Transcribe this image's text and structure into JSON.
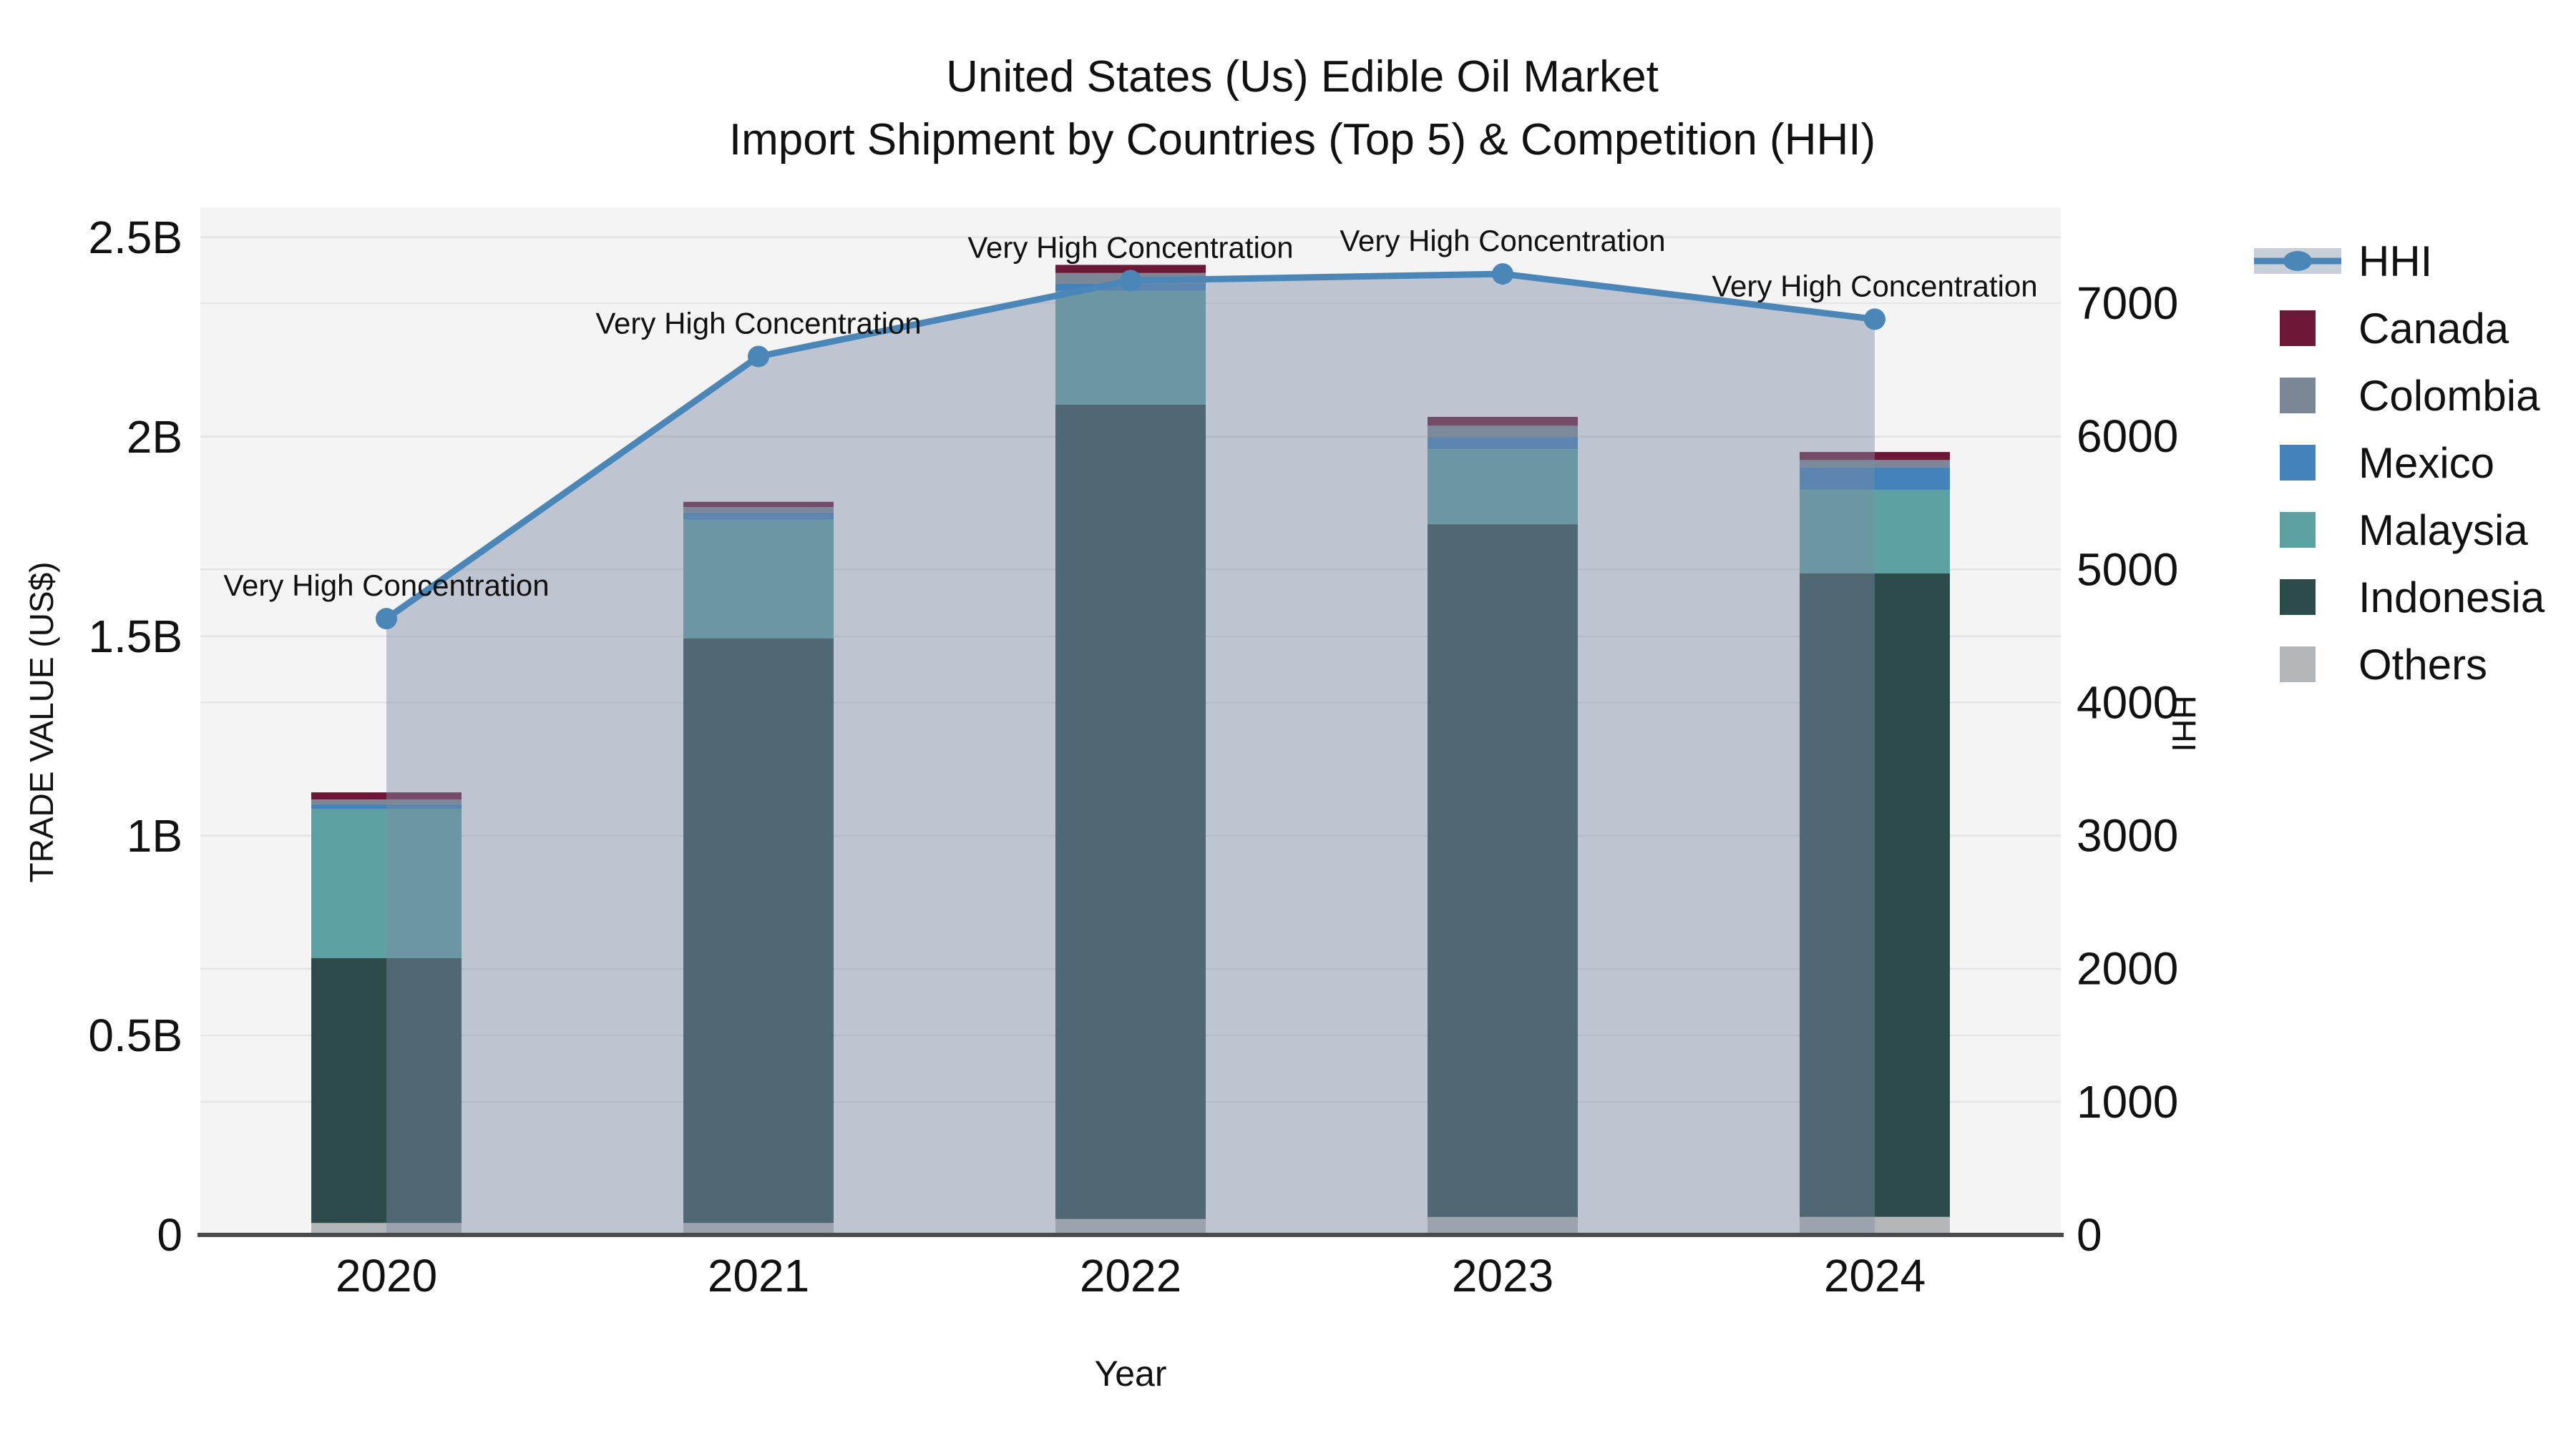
{
  "title": {
    "line1": "United States (Us) Edible Oil Market",
    "line2": "Import Shipment by Countries (Top 5) & Competition (HHI)"
  },
  "axes": {
    "left": {
      "title": "TRADE VALUE (US$)",
      "ticks": [
        {
          "label": "0",
          "value": 0.0
        },
        {
          "label": "0.5B",
          "value": 0.5
        },
        {
          "label": "1B",
          "value": 1.0
        },
        {
          "label": "1.5B",
          "value": 1.5
        },
        {
          "label": "2B",
          "value": 2.0
        },
        {
          "label": "2.5B",
          "value": 2.5
        }
      ]
    },
    "right": {
      "title": "HHI",
      "ticks": [
        {
          "label": "0",
          "value": 0
        },
        {
          "label": "1000",
          "value": 1000
        },
        {
          "label": "2000",
          "value": 2000
        },
        {
          "label": "3000",
          "value": 3000
        },
        {
          "label": "4000",
          "value": 4000
        },
        {
          "label": "5000",
          "value": 5000
        },
        {
          "label": "6000",
          "value": 6000
        },
        {
          "label": "7000",
          "value": 7000
        }
      ]
    },
    "x": {
      "title": "Year"
    }
  },
  "legend": [
    {
      "label": "HHI",
      "type": "line",
      "color": "#4a86b8",
      "band_color": "#c9cfd9"
    },
    {
      "label": "Canada",
      "type": "box",
      "color": "#6e1838"
    },
    {
      "label": "Colombia",
      "type": "box",
      "color": "#7b8794"
    },
    {
      "label": "Mexico",
      "type": "box",
      "color": "#4382ba"
    },
    {
      "label": "Malaysia",
      "type": "box",
      "color": "#5ca0a1"
    },
    {
      "label": "Indonesia",
      "type": "box",
      "color": "#2d4b49"
    },
    {
      "label": "Others",
      "type": "box",
      "color": "#b4b7b9"
    }
  ],
  "chart_data": {
    "type": "bar",
    "subtype": "stacked-bars-with-line-area",
    "categories": [
      "2020",
      "2021",
      "2022",
      "2023",
      "2024"
    ],
    "bar_value_unit": "billions US$",
    "series": [
      {
        "name": "Canada",
        "color": "#6e1838",
        "values": [
          0.018,
          0.013,
          0.02,
          0.022,
          0.02
        ]
      },
      {
        "name": "Colombia",
        "color": "#7b8794",
        "values": [
          0.012,
          0.014,
          0.027,
          0.029,
          0.018
        ]
      },
      {
        "name": "Mexico",
        "color": "#4382ba",
        "values": [
          0.011,
          0.018,
          0.018,
          0.03,
          0.056
        ]
      },
      {
        "name": "Malaysia",
        "color": "#5ca0a1",
        "values": [
          0.374,
          0.297,
          0.285,
          0.188,
          0.21
        ]
      },
      {
        "name": "Indonesia",
        "color": "#2d4b49",
        "values": [
          0.664,
          1.465,
          2.041,
          1.736,
          1.613
        ]
      },
      {
        "name": "Others",
        "color": "#b4b7b9",
        "values": [
          0.03,
          0.03,
          0.04,
          0.045,
          0.045
        ]
      }
    ],
    "stack_order_bottom_to_top": [
      "Others",
      "Indonesia",
      "Malaysia",
      "Mexico",
      "Colombia",
      "Canada"
    ],
    "bar_totals": [
      1.109,
      1.837,
      2.431,
      2.05,
      1.962
    ],
    "line_series": {
      "name": "HHI",
      "axis": "right",
      "color": "#4a86b8",
      "area_fill": "rgba(125,140,165,0.45)",
      "values": [
        4630,
        6600,
        7170,
        7220,
        6880
      ]
    },
    "annotations": [
      {
        "x": "2020",
        "text": "Very High Concentration"
      },
      {
        "x": "2021",
        "text": "Very High Concentration"
      },
      {
        "x": "2022",
        "text": "Very High Concentration"
      },
      {
        "x": "2023",
        "text": "Very High Concentration"
      },
      {
        "x": "2024",
        "text": "Very High Concentration"
      }
    ],
    "xlabel": "Year",
    "ylabel_left": "TRADE VALUE (US$)",
    "ylabel_right": "HHI",
    "ylim_left": [
      0,
      2.575
    ],
    "ylim_right": [
      0,
      7720
    ],
    "grid": true,
    "legend_position": "right"
  },
  "style": {
    "plot_bg": "#f4f4f5",
    "grid_color": "#e4e4e6",
    "axis_line_color": "#4a4a4a",
    "text_color": "#111111"
  }
}
